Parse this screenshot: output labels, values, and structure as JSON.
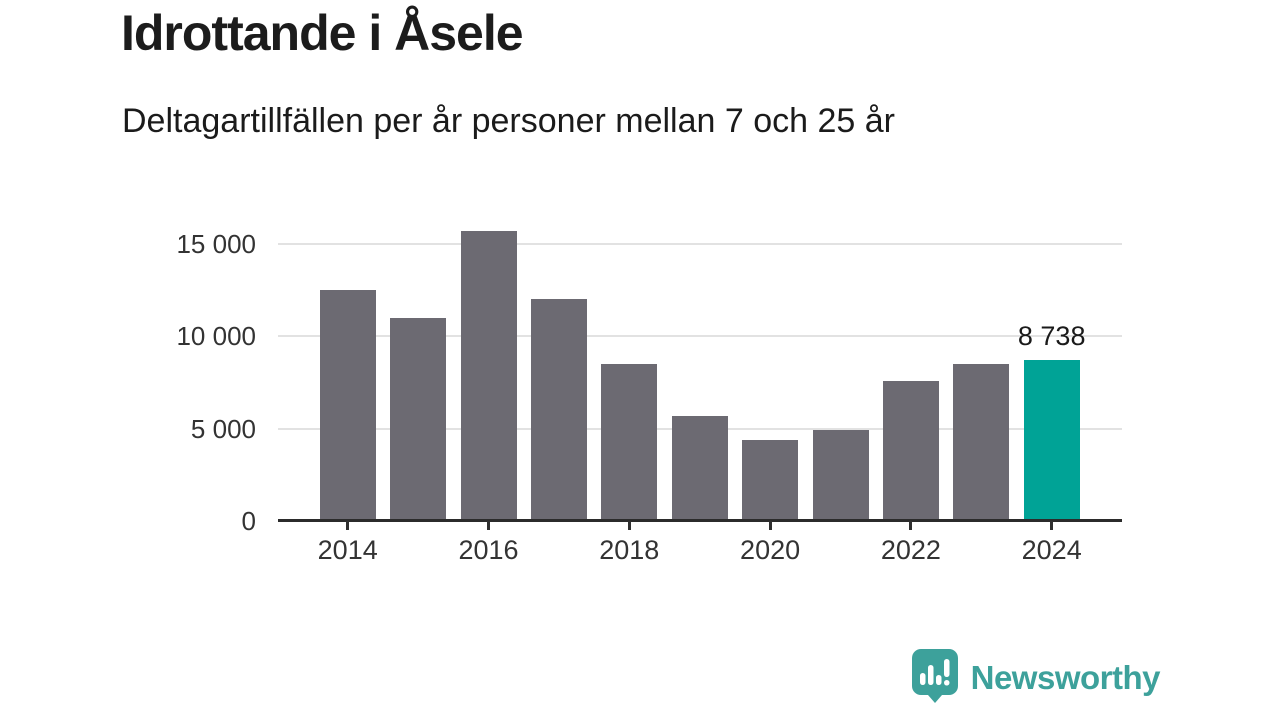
{
  "title": "Idrottande i Åsele",
  "subtitle": "Deltagartillfällen per år personer mellan 7 och 25 år",
  "chart_data": {
    "type": "bar",
    "title": "Idrottande i Åsele",
    "subtitle": "Deltagartillfällen per år personer mellan 7 och 25 år",
    "categories": [
      2014,
      2015,
      2016,
      2017,
      2018,
      2019,
      2020,
      2021,
      2022,
      2023,
      2024
    ],
    "values": [
      12500,
      11000,
      15700,
      12000,
      8500,
      5700,
      4400,
      4900,
      7600,
      8500,
      8738
    ],
    "highlight_index": 10,
    "highlight_value_label": "8 738",
    "ylim": [
      0,
      15750
    ],
    "y_ticks": [
      0,
      5000,
      10000,
      15000
    ],
    "y_tick_labels": [
      "0",
      "5 000",
      "10 000",
      "15 000"
    ],
    "x_tick_labels": [
      "2014",
      "2016",
      "2018",
      "2020",
      "2022",
      "2024"
    ],
    "grid": true,
    "legend_position": "none",
    "bar_color": "#6c6a72",
    "highlight_color": "#00a396",
    "axis_color": "#2b2b2b",
    "grid_color": "#e2e2e2",
    "label_color": "#333333"
  },
  "footer": {
    "brand": "Newsworthy",
    "brand_color": "#3da19b",
    "logo_icon": "bar-chart-speech-bubble-icon"
  }
}
